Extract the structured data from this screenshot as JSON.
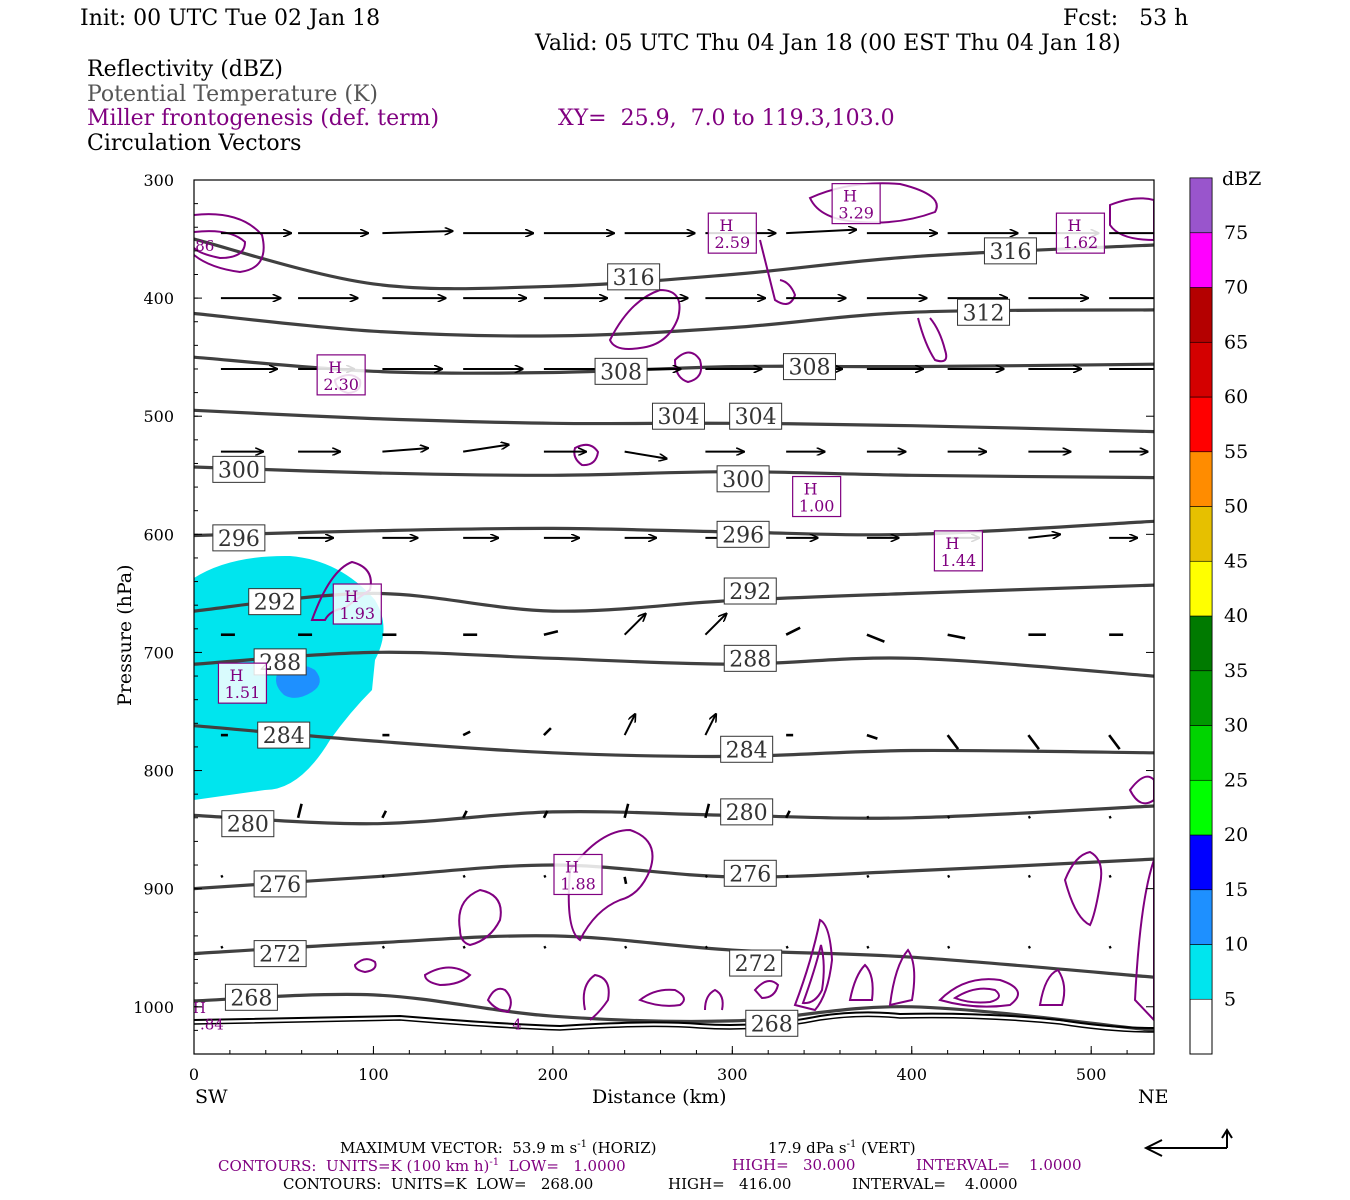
{
  "header": {
    "init": "Init: 00 UTC Tue 02 Jan 18",
    "fcst": "Fcst:   53 h",
    "valid": "Valid: 05 UTC Thu 04 Jan 18 (00 EST Thu 04 Jan 18)"
  },
  "fields": {
    "reflectivity": "Reflectivity (dBZ)",
    "theta": "Potential Temperature (K)",
    "miller": "Miller frontogenesis (def. term)",
    "xy": "XY=  25.9,  7.0 to 119.3,103.0",
    "circulation": "Circulation Vectors"
  },
  "colors": {
    "theta": "#404040",
    "frontogenesis": "#800080",
    "refl_5": "#00e5ee",
    "refl_10": "#1e90ff",
    "ground": "#000000"
  },
  "chart_data": {
    "type": "cross-section",
    "xlabel": "Distance (km)",
    "ylabel": "Pressure (hPa)",
    "xlim": [
      0,
      535
    ],
    "ylim": [
      1040,
      300
    ],
    "y_scale": "linear",
    "x_ticks": [
      "0",
      "100",
      "200",
      "300",
      "400",
      "500"
    ],
    "y_ticks": [
      "300",
      "400",
      "500",
      "600",
      "700",
      "800",
      "900",
      "1000"
    ],
    "x_tick_values": [
      0,
      100,
      200,
      300,
      400,
      500
    ],
    "y_tick_values": [
      300,
      400,
      500,
      600,
      700,
      800,
      900,
      1000
    ],
    "left_end": "SW",
    "right_end": "NE",
    "colorbar": {
      "unit": "dBZ",
      "levels": [
        "5",
        "10",
        "15",
        "20",
        "25",
        "30",
        "35",
        "40",
        "45",
        "50",
        "55",
        "60",
        "65",
        "70",
        "75"
      ],
      "colors": [
        "#00e5ee",
        "#1e90ff",
        "#0000ff",
        "#00ff00",
        "#00d400",
        "#009900",
        "#007a00",
        "#ffff00",
        "#e6c000",
        "#ff8c00",
        "#ff0000",
        "#d40000",
        "#b40000",
        "#ff00ff",
        "#9955cc"
      ]
    },
    "theta_contours": [
      {
        "label": "316",
        "points": [
          [
            0,
            350
          ],
          [
            100,
            388
          ],
          [
            200,
            390
          ],
          [
            300,
            380
          ],
          [
            400,
            365
          ],
          [
            535,
            355
          ]
        ]
      },
      {
        "label": "312",
        "points": [
          [
            0,
            413
          ],
          [
            100,
            428
          ],
          [
            200,
            432
          ],
          [
            300,
            425
          ],
          [
            400,
            412
          ],
          [
            535,
            410
          ]
        ]
      },
      {
        "label": "308",
        "points": [
          [
            0,
            450
          ],
          [
            100,
            462
          ],
          [
            200,
            463
          ],
          [
            300,
            458
          ],
          [
            400,
            458
          ],
          [
            535,
            456
          ]
        ]
      },
      {
        "label": "304",
        "points": [
          [
            0,
            495
          ],
          [
            100,
            502
          ],
          [
            200,
            506
          ],
          [
            300,
            506
          ],
          [
            400,
            508
          ],
          [
            535,
            513
          ]
        ]
      },
      {
        "label": "300",
        "points": [
          [
            0,
            543
          ],
          [
            100,
            548
          ],
          [
            200,
            550
          ],
          [
            300,
            547
          ],
          [
            400,
            550
          ],
          [
            535,
            552
          ]
        ]
      },
      {
        "label": "296",
        "points": [
          [
            0,
            601
          ],
          [
            100,
            597
          ],
          [
            200,
            595
          ],
          [
            300,
            598
          ],
          [
            400,
            600
          ],
          [
            535,
            589
          ]
        ]
      },
      {
        "label": "292",
        "points": [
          [
            0,
            665
          ],
          [
            100,
            650
          ],
          [
            200,
            665
          ],
          [
            300,
            656
          ],
          [
            400,
            650
          ],
          [
            535,
            643
          ]
        ]
      },
      {
        "label": "288",
        "points": [
          [
            0,
            710
          ],
          [
            100,
            700
          ],
          [
            200,
            705
          ],
          [
            300,
            710
          ],
          [
            400,
            705
          ],
          [
            535,
            720
          ]
        ]
      },
      {
        "label": "284",
        "points": [
          [
            0,
            762
          ],
          [
            100,
            775
          ],
          [
            200,
            785
          ],
          [
            300,
            788
          ],
          [
            400,
            783
          ],
          [
            535,
            785
          ]
        ]
      },
      {
        "label": "280",
        "points": [
          [
            0,
            838
          ],
          [
            100,
            845
          ],
          [
            200,
            835
          ],
          [
            300,
            838
          ],
          [
            400,
            840
          ],
          [
            535,
            830
          ]
        ]
      },
      {
        "label": "276",
        "points": [
          [
            0,
            900
          ],
          [
            100,
            890
          ],
          [
            200,
            880
          ],
          [
            300,
            890
          ],
          [
            400,
            885
          ],
          [
            535,
            875
          ]
        ]
      },
      {
        "label": "272",
        "points": [
          [
            0,
            955
          ],
          [
            100,
            946
          ],
          [
            200,
            940
          ],
          [
            300,
            952
          ],
          [
            400,
            958
          ],
          [
            535,
            975
          ]
        ]
      },
      {
        "label": "268",
        "points": [
          [
            0,
            995
          ],
          [
            100,
            990
          ],
          [
            200,
            1008
          ],
          [
            300,
            1012
          ],
          [
            400,
            1000
          ],
          [
            535,
            1020
          ]
        ]
      }
    ],
    "theta_labels": [
      {
        "label": "316",
        "x": 245,
        "p": 382
      },
      {
        "label": "316",
        "x": 455,
        "p": 360
      },
      {
        "label": "312",
        "x": 440,
        "p": 412
      },
      {
        "label": "308",
        "x": 238,
        "p": 462
      },
      {
        "label": "308",
        "x": 343,
        "p": 458
      },
      {
        "label": "304",
        "x": 270,
        "p": 500
      },
      {
        "label": "304",
        "x": 313,
        "p": 500
      },
      {
        "label": "300",
        "x": 25,
        "p": 545
      },
      {
        "label": "300",
        "x": 306,
        "p": 553
      },
      {
        "label": "296",
        "x": 25,
        "p": 603
      },
      {
        "label": "296",
        "x": 306,
        "p": 600
      },
      {
        "label": "292",
        "x": 45,
        "p": 657
      },
      {
        "label": "292",
        "x": 310,
        "p": 648
      },
      {
        "label": "288",
        "x": 48,
        "p": 708
      },
      {
        "label": "288",
        "x": 310,
        "p": 705
      },
      {
        "label": "284",
        "x": 50,
        "p": 770
      },
      {
        "label": "284",
        "x": 308,
        "p": 782
      },
      {
        "label": "280",
        "x": 30,
        "p": 845
      },
      {
        "label": "280",
        "x": 308,
        "p": 835
      },
      {
        "label": "276",
        "x": 48,
        "p": 896
      },
      {
        "label": "276",
        "x": 310,
        "p": 887
      },
      {
        "label": "272",
        "x": 48,
        "p": 955
      },
      {
        "label": "272",
        "x": 313,
        "p": 963
      },
      {
        "label": "268",
        "x": 32,
        "p": 992
      },
      {
        "label": "268",
        "x": 322,
        "p": 1014
      }
    ],
    "frontogenesis_highs": [
      {
        "label": "H",
        "value": "2.59",
        "x": 300,
        "p": 345
      },
      {
        "label": "H",
        "value": "3.29",
        "x": 369,
        "p": 320
      },
      {
        "label": "H",
        "value": "1.62",
        "x": 494,
        "p": 345
      },
      {
        "label": "H",
        "value": "2.30",
        "x": 82,
        "p": 465
      },
      {
        "label": "H",
        "value": "1.00",
        "x": 347,
        "p": 568
      },
      {
        "label": "H",
        "value": "1.44",
        "x": 426,
        "p": 614
      },
      {
        "label": "H",
        "value": "1.93",
        "x": 91,
        "p": 659
      },
      {
        "label": "H",
        "value": "1.51",
        "x": 27,
        "p": 726
      },
      {
        "label": "H",
        "value": "1.88",
        "x": 214,
        "p": 888
      }
    ],
    "frontogenesis_fragments": [
      {
        "text": "86",
        "x": 6,
        "p": 355
      },
      {
        "text": "H",
        "x": 3,
        "p": 1000
      },
      {
        "text": ".84",
        "x": 10,
        "p": 1014
      },
      {
        "text": "4",
        "x": 180,
        "p": 1014
      }
    ],
    "vectors": [
      {
        "p": 345,
        "x": [
          15,
          58,
          105,
          150,
          195,
          240,
          285,
          330,
          375,
          420,
          465,
          510
        ],
        "u": [
          1,
          1,
          1,
          1,
          1,
          1,
          1,
          1,
          1,
          1,
          1,
          1
        ],
        "w": [
          0,
          0,
          0.03,
          0,
          0,
          0,
          0,
          0.05,
          0,
          0,
          0,
          0
        ]
      },
      {
        "p": 400,
        "x": [
          15,
          58,
          105,
          150,
          195,
          240,
          285,
          330,
          375,
          420,
          465,
          510
        ],
        "u": [
          0.85,
          0.85,
          0.9,
          0.9,
          0.9,
          0.9,
          0.85,
          0.85,
          0.85,
          0.85,
          0.85,
          0.85
        ],
        "w": [
          0,
          0,
          0,
          0,
          0,
          0,
          0,
          0,
          0,
          0,
          0,
          0
        ]
      },
      {
        "p": 460,
        "x": [
          15,
          58,
          105,
          150,
          195,
          240,
          285,
          330,
          375,
          420,
          465,
          510
        ],
        "u": [
          0.8,
          0.8,
          0.85,
          0.85,
          0.85,
          0.8,
          0.8,
          0.8,
          0.8,
          0.8,
          0.75,
          0.75
        ],
        "w": [
          0,
          0,
          0,
          0,
          0,
          0,
          0,
          0,
          0,
          0,
          0,
          0
        ]
      },
      {
        "p": 530,
        "x": [
          15,
          58,
          105,
          150,
          195,
          240,
          285,
          330,
          375,
          420,
          465,
          510
        ],
        "u": [
          0.6,
          0.6,
          0.65,
          0.65,
          0.6,
          0.6,
          0.55,
          0.55,
          0.55,
          0.55,
          0.6,
          0.55
        ],
        "w": [
          0,
          0,
          0.05,
          0.1,
          0,
          -0.1,
          0,
          0,
          0,
          0,
          0,
          0
        ]
      },
      {
        "p": 603,
        "x": [
          15,
          58,
          105,
          150,
          195,
          240,
          285,
          330,
          375,
          420,
          465,
          510
        ],
        "u": [
          0.55,
          0.5,
          0.5,
          0.5,
          0.5,
          0.45,
          0.45,
          0.45,
          0.45,
          0.45,
          0.45,
          0.4
        ],
        "w": [
          0,
          0,
          0,
          0,
          0,
          0,
          0,
          0,
          0,
          0,
          0.05,
          0
        ]
      },
      {
        "p": 685,
        "x": [
          15,
          58,
          105,
          150,
          195,
          240,
          285,
          330,
          375,
          420,
          465,
          510
        ],
        "u": [
          0.2,
          0.2,
          0.2,
          0.2,
          0.2,
          0.3,
          0.3,
          0.2,
          0.25,
          0.25,
          0.25,
          0.2
        ],
        "w": [
          0,
          0,
          0,
          0,
          0.05,
          0.3,
          0.3,
          0.1,
          -0.1,
          -0.05,
          0,
          0
        ]
      },
      {
        "p": 770,
        "x": [
          15,
          58,
          105,
          150,
          195,
          240,
          285,
          330,
          375,
          420,
          465,
          510
        ],
        "u": [
          0.1,
          0.1,
          0.1,
          0.1,
          0.1,
          0.15,
          0.15,
          0.1,
          0.15,
          0.15,
          0.15,
          0.15
        ],
        "w": [
          0,
          0,
          0,
          0.05,
          0.1,
          0.3,
          0.3,
          0,
          -0.05,
          -0.2,
          -0.2,
          -0.2
        ]
      },
      {
        "p": 840,
        "x": [
          15,
          58,
          105,
          150,
          195,
          240,
          285,
          330,
          375,
          420,
          465,
          510
        ],
        "u": [
          0.05,
          0.05,
          0.05,
          0.05,
          0.05,
          0.05,
          0.05,
          0.05,
          0.05,
          0.05,
          0.05,
          0.05
        ],
        "w": [
          0,
          0.2,
          0.1,
          0.1,
          0.1,
          0.2,
          0.2,
          0.1,
          0,
          0,
          0,
          0
        ]
      },
      {
        "p": 890,
        "x": [
          15,
          58,
          105,
          150,
          195,
          240,
          285,
          330,
          375,
          420,
          465,
          510
        ],
        "u": [
          0.02,
          0.02,
          0.02,
          0.02,
          0.02,
          0.02,
          0.02,
          0.02,
          0.02,
          0.02,
          0.02,
          0.02
        ],
        "w": [
          0,
          -0.2,
          0,
          -0.05,
          0,
          -0.1,
          -0.05,
          0,
          0,
          0,
          0,
          0
        ]
      },
      {
        "p": 950,
        "x": [
          15,
          58,
          105,
          150,
          195,
          240,
          285,
          330,
          375,
          420,
          465,
          510
        ],
        "u": [
          0.02,
          0.02,
          0.02,
          0.02,
          0.02,
          0.02,
          0.02,
          0.02,
          0.02,
          0.02,
          0.02,
          0.02
        ],
        "w": [
          0,
          0,
          -0.05,
          -0.05,
          0,
          0,
          0,
          0,
          0,
          0,
          0,
          0
        ]
      }
    ]
  },
  "footer": {
    "line1_a": "MAXIMUM VECTOR:  53.9 m s",
    "line1_sup": "-1",
    "line1_b": " (HORIZ)",
    "line1_c": "17.9 dPa s",
    "line1_c_sup": "-1",
    "line1_d": " (VERT)",
    "line2_a": "CONTOURS:  UNITS=K (100 km h)",
    "line2_sup": "-1",
    "line2_b": "  LOW=   1.0000",
    "line2_c": "HIGH=   30.000",
    "line2_d": "INTERVAL=    1.0000",
    "line3_a": "CONTOURS:  UNITS=K  LOW=   268.00",
    "line3_b": "HIGH=   416.00",
    "line3_c": "INTERVAL=    4.0000"
  }
}
